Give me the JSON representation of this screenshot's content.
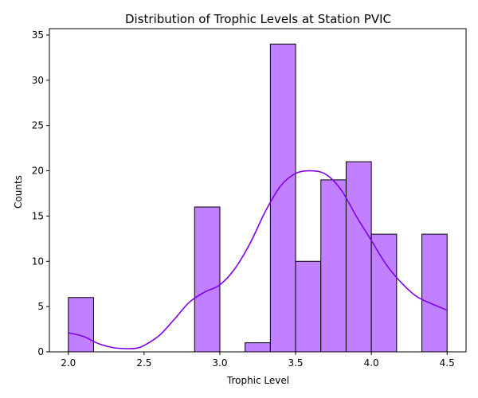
{
  "chart_data": {
    "type": "bar",
    "title": "Distribution of Trophic Levels at Station PVIC",
    "xlabel": "Trophic Level",
    "ylabel": "Counts",
    "xlim": [
      1.875,
      4.625
    ],
    "ylim": [
      0,
      35.7
    ],
    "xticks": [
      "2.0",
      "2.5",
      "3.0",
      "3.5",
      "4.0",
      "4.5"
    ],
    "xtick_values": [
      2.0,
      2.5,
      3.0,
      3.5,
      4.0,
      4.5
    ],
    "yticks": [
      "0",
      "5",
      "10",
      "15",
      "20",
      "25",
      "30",
      "35"
    ],
    "ytick_values": [
      0,
      5,
      10,
      15,
      20,
      25,
      30,
      35
    ],
    "bin_start": 2.0,
    "bin_width": 0.16667,
    "counts": [
      6,
      0,
      0,
      0,
      0,
      16,
      0,
      1,
      34,
      10,
      19,
      21,
      13,
      0,
      13
    ],
    "kde": {
      "x": [
        2.0,
        2.1,
        2.2,
        2.3,
        2.4,
        2.45,
        2.5,
        2.6,
        2.7,
        2.8,
        2.9,
        3.0,
        3.1,
        3.2,
        3.3,
        3.4,
        3.5,
        3.6,
        3.7,
        3.8,
        3.9,
        4.0,
        4.1,
        4.2,
        4.3,
        4.4,
        4.5
      ],
      "y": [
        2.1,
        1.7,
        0.9,
        0.45,
        0.35,
        0.4,
        0.7,
        1.8,
        3.6,
        5.5,
        6.6,
        7.4,
        9.2,
        12.0,
        15.5,
        18.3,
        19.7,
        20.0,
        19.6,
        17.9,
        15.0,
        12.3,
        9.6,
        7.6,
        6.1,
        5.3,
        4.6
      ]
    },
    "colors": {
      "bar_fill": "#c080ff",
      "bar_edge": "#000000",
      "kde_line": "#8000e8"
    },
    "grid": false,
    "legend": "none"
  }
}
